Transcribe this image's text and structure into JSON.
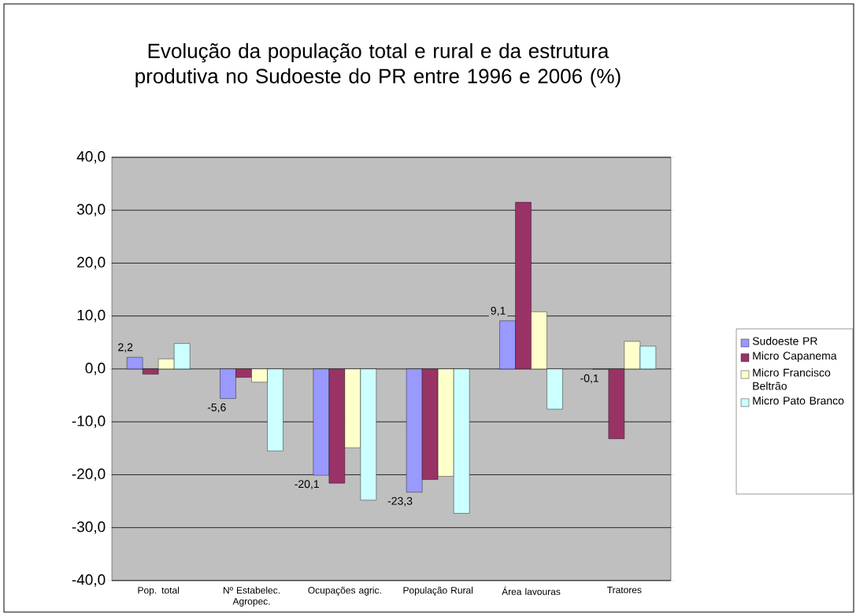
{
  "chart_data": {
    "type": "bar",
    "title": "Evolução da população total e rural e da estrutura produtiva no Sudoeste do PR entre 1996 e 2006 (%)",
    "categories": [
      "Pop. total",
      "Nº Estabelec. Agropec.",
      "Ocupações agric.",
      "População Rural",
      "Área lavouras",
      "Tratores"
    ],
    "series": [
      {
        "name": "Sudoeste PR",
        "color": "#9999ff",
        "values": [
          2.2,
          -5.6,
          -20.1,
          -23.3,
          9.1,
          -0.1
        ],
        "value_labels": [
          "2,2",
          "-5,6",
          "-20,1",
          "-23,3",
          "9,1",
          "-0,1"
        ]
      },
      {
        "name": "Micro Capanema",
        "color": "#993366",
        "values": [
          -1.0,
          -1.6,
          -21.6,
          -20.9,
          31.5,
          -13.2
        ]
      },
      {
        "name": "Micro Francisco Beltrão",
        "color": "#ffffcc",
        "values": [
          1.9,
          -2.5,
          -14.9,
          -20.3,
          10.8,
          5.2
        ]
      },
      {
        "name": "Micro Pato Branco",
        "color": "#ccffff",
        "values": [
          4.8,
          -15.5,
          -24.8,
          -27.3,
          -7.6,
          4.3
        ]
      }
    ],
    "ylim": [
      -40,
      40
    ],
    "yticks": [
      {
        "value": -40,
        "label": "-40,0"
      },
      {
        "value": -30,
        "label": "-30,0"
      },
      {
        "value": -20,
        "label": "-20,0"
      },
      {
        "value": -10,
        "label": "-10,0"
      },
      {
        "value": 0,
        "label": "0,0"
      },
      {
        "value": 10,
        "label": "10,0"
      },
      {
        "value": 20,
        "label": "20,0"
      },
      {
        "value": 30,
        "label": "30,0"
      },
      {
        "value": 40,
        "label": "40,0"
      }
    ],
    "grid": "y",
    "legend": "right"
  }
}
